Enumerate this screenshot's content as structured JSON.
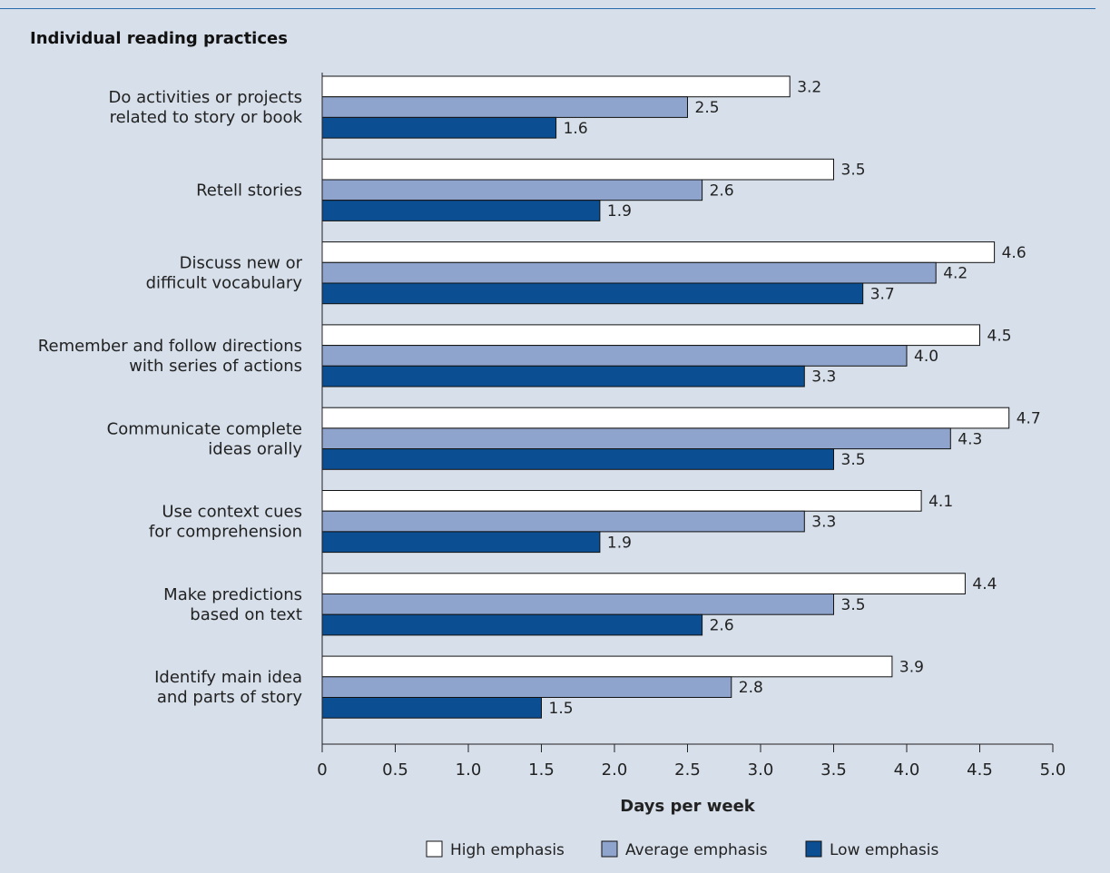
{
  "chart_data": {
    "type": "bar",
    "orientation": "horizontal",
    "title": "Individual reading practices",
    "xlabel": "Days per week",
    "ylabel": "",
    "xlim": [
      0,
      5.0
    ],
    "xticks": [
      "0",
      "0.5",
      "1.0",
      "1.5",
      "2.0",
      "2.5",
      "3.0",
      "3.5",
      "4.0",
      "4.5",
      "5.0"
    ],
    "categories": [
      [
        "Do activities or projects",
        "related to story or book"
      ],
      [
        "Retell stories"
      ],
      [
        "Discuss new or",
        "difficult vocabulary"
      ],
      [
        "Remember and follow directions",
        "with series of actions"
      ],
      [
        "Communicate complete",
        "ideas orally"
      ],
      [
        "Use context cues",
        "for comprehension"
      ],
      [
        "Make predictions",
        "based on text"
      ],
      [
        "Identify main idea",
        "and parts of story"
      ]
    ],
    "series": [
      {
        "name": "High emphasis",
        "color": "#ffffff",
        "values": [
          3.2,
          3.5,
          4.6,
          4.5,
          4.7,
          4.1,
          4.4,
          3.9
        ],
        "labels": [
          "3.2",
          "3.5",
          "4.6",
          "4.5",
          "4.7",
          "4.1",
          "4.4",
          "3.9"
        ]
      },
      {
        "name": "Average emphasis",
        "color": "#8ea4cc",
        "values": [
          2.5,
          2.6,
          4.2,
          4.0,
          4.3,
          3.3,
          3.5,
          2.8
        ],
        "labels": [
          "2.5",
          "2.6",
          "4.2",
          "4.0",
          "4.3",
          "3.3",
          "3.5",
          "2.8"
        ]
      },
      {
        "name": "Low emphasis",
        "color": "#0b4f92",
        "values": [
          1.6,
          1.9,
          3.7,
          3.3,
          3.5,
          1.9,
          2.6,
          1.5
        ],
        "labels": [
          "1.6",
          "1.9",
          "3.7",
          "3.3",
          "3.5",
          "1.9",
          "2.6",
          "1.5"
        ]
      }
    ],
    "grid": false,
    "legend_position": "bottom"
  }
}
